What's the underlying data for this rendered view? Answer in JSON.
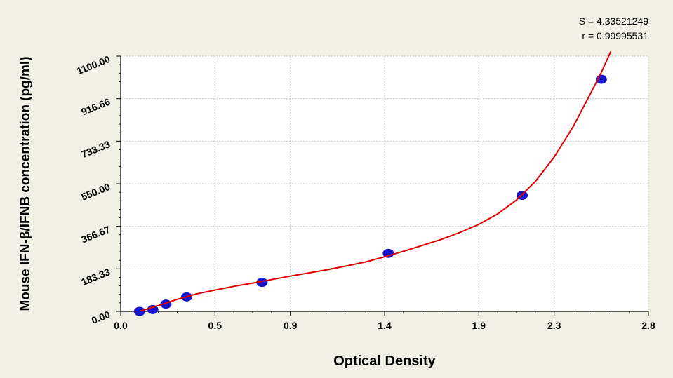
{
  "chart_data": {
    "type": "scatter",
    "xlabel": "Optical Density",
    "ylabel": "Mouse IFN-β/IFNB concentration (pg/ml)",
    "xlim": [
      0.0,
      2.8
    ],
    "ylim": [
      0.0,
      1100.0
    ],
    "x_ticks": [
      0.0,
      0.5,
      0.9,
      1.4,
      1.9,
      2.3,
      2.8
    ],
    "x_tick_labels": [
      "0.0",
      "0.5",
      "0.9",
      "1.4",
      "1.9",
      "2.3",
      "2.8"
    ],
    "y_ticks": [
      0.0,
      183.33,
      366.67,
      550.0,
      733.33,
      916.66,
      1100.0
    ],
    "y_tick_labels": [
      "0.00",
      "183.33",
      "366.67",
      "550.00",
      "733.33",
      "916.66",
      "1100.00"
    ],
    "grid": true,
    "stats": [
      "S = 4.33521249",
      "r = 0.99995531"
    ],
    "points": [
      {
        "x": 0.1,
        "y": 0
      },
      {
        "x": 0.17,
        "y": 7.8
      },
      {
        "x": 0.24,
        "y": 31.25
      },
      {
        "x": 0.35,
        "y": 62.5
      },
      {
        "x": 0.75,
        "y": 125
      },
      {
        "x": 1.42,
        "y": 250
      },
      {
        "x": 2.13,
        "y": 500
      },
      {
        "x": 2.55,
        "y": 1000
      }
    ],
    "fit_curve": [
      [
        0.1,
        0
      ],
      [
        0.2,
        25
      ],
      [
        0.3,
        52
      ],
      [
        0.4,
        75
      ],
      [
        0.5,
        92
      ],
      [
        0.6,
        108
      ],
      [
        0.7,
        122
      ],
      [
        0.8,
        137
      ],
      [
        0.9,
        152
      ],
      [
        1.0,
        166
      ],
      [
        1.1,
        180
      ],
      [
        1.2,
        196
      ],
      [
        1.3,
        213
      ],
      [
        1.4,
        235
      ],
      [
        1.5,
        259
      ],
      [
        1.6,
        284
      ],
      [
        1.7,
        310
      ],
      [
        1.8,
        340
      ],
      [
        1.9,
        375
      ],
      [
        2.0,
        420
      ],
      [
        2.1,
        480
      ],
      [
        2.2,
        560
      ],
      [
        2.3,
        665
      ],
      [
        2.4,
        795
      ],
      [
        2.5,
        950
      ],
      [
        2.55,
        1030
      ],
      [
        2.6,
        1120
      ]
    ],
    "colors": {
      "background": "#f0f0e4",
      "plot_background": "#ffffff",
      "grid": "#c8c8c8",
      "curve": "#e00000",
      "points": "#1515cc"
    }
  }
}
